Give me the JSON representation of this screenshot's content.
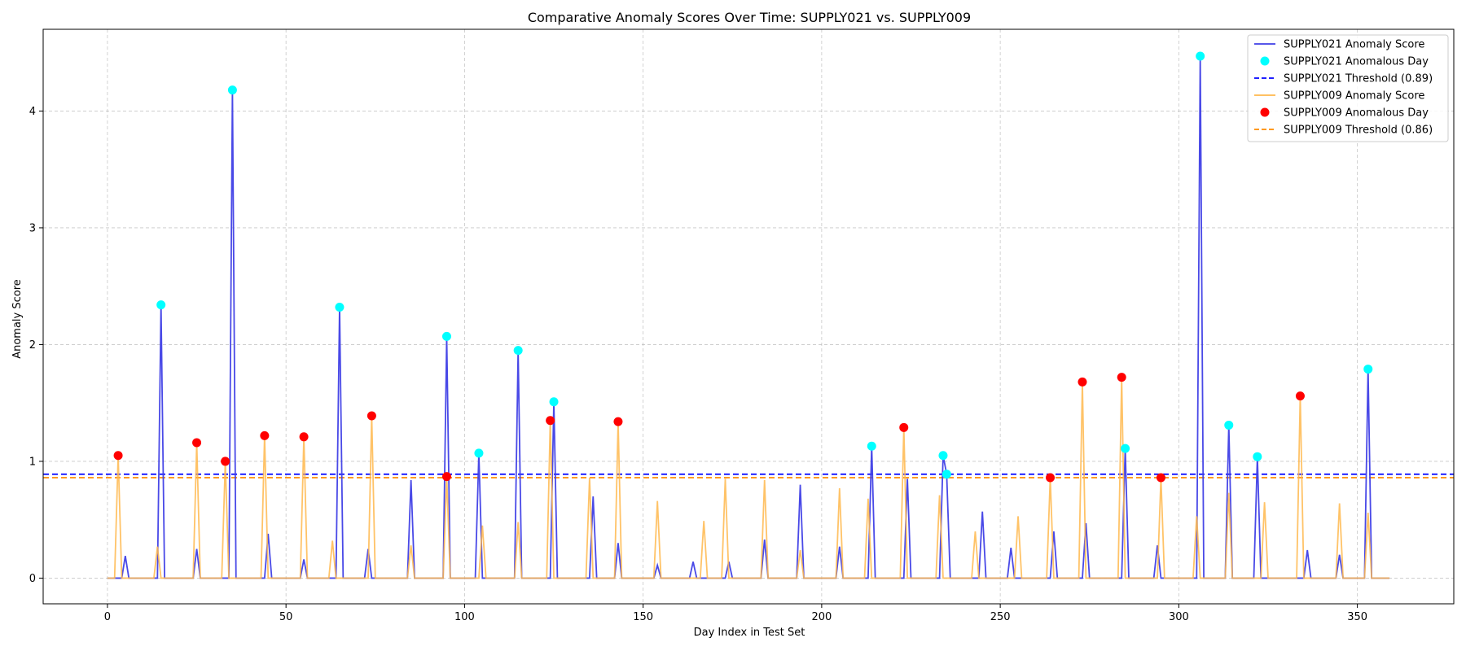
{
  "chart_data": {
    "type": "line",
    "title": "Comparative Anomaly Scores Over Time: SUPPLY021 vs. SUPPLY009",
    "xlabel": "Day Index in Test Set",
    "ylabel": "Anomaly Score",
    "xlim": [
      -18,
      377
    ],
    "ylim": [
      -0.22,
      4.7
    ],
    "xticks": [
      "0",
      "50",
      "100",
      "150",
      "200",
      "250",
      "300",
      "350"
    ],
    "yticks": [
      "0",
      "1",
      "2",
      "3",
      "4"
    ],
    "grid": true,
    "legend_position": "top-right",
    "n_days": 360,
    "colors": {
      "supply021_line": "#3f3fe6",
      "supply021_marker": "#00ffff",
      "supply021_threshold": "#0000ff",
      "supply009_line": "#ffb84d",
      "supply009_marker": "#ff0000",
      "supply009_threshold": "#ff8c00"
    },
    "series": [
      {
        "name": "SUPPLY021 Anomaly Score",
        "kind": "line",
        "spikes": [
          [
            5,
            0.19
          ],
          [
            15,
            2.34
          ],
          [
            25,
            0.25
          ],
          [
            35,
            4.18
          ],
          [
            45,
            0.38
          ],
          [
            55,
            0.16
          ],
          [
            65,
            2.32
          ],
          [
            73,
            0.25
          ],
          [
            85,
            0.84
          ],
          [
            95,
            2.07
          ],
          [
            104,
            1.07
          ],
          [
            115,
            1.95
          ],
          [
            125,
            1.51
          ],
          [
            136,
            0.7
          ],
          [
            143,
            0.3
          ],
          [
            154,
            0.11
          ],
          [
            164,
            0.14
          ],
          [
            174,
            0.14
          ],
          [
            184,
            0.33
          ],
          [
            194,
            0.8
          ],
          [
            205,
            0.27
          ],
          [
            214,
            1.13
          ],
          [
            224,
            0.85
          ],
          [
            234,
            1.05
          ],
          [
            235,
            0.89
          ],
          [
            245,
            0.57
          ],
          [
            253,
            0.26
          ],
          [
            265,
            0.4
          ],
          [
            274,
            0.47
          ],
          [
            285,
            1.11
          ],
          [
            294,
            0.28
          ],
          [
            306,
            4.47
          ],
          [
            314,
            1.31
          ],
          [
            322,
            1.04
          ],
          [
            336,
            0.24
          ],
          [
            345,
            0.2
          ],
          [
            353,
            1.79
          ]
        ]
      },
      {
        "name": "SUPPLY021 Anomalous Day",
        "kind": "marker",
        "points": [
          [
            15,
            2.34
          ],
          [
            35,
            4.18
          ],
          [
            65,
            2.32
          ],
          [
            95,
            2.07
          ],
          [
            104,
            1.07
          ],
          [
            115,
            1.95
          ],
          [
            125,
            1.51
          ],
          [
            214,
            1.13
          ],
          [
            234,
            1.05
          ],
          [
            235,
            0.89
          ],
          [
            285,
            1.11
          ],
          [
            306,
            4.47
          ],
          [
            314,
            1.31
          ],
          [
            322,
            1.04
          ],
          [
            353,
            1.79
          ]
        ]
      },
      {
        "name": "SUPPLY021 Threshold (0.89)",
        "kind": "threshold",
        "value": 0.89
      },
      {
        "name": "SUPPLY009 Anomaly Score",
        "kind": "line",
        "spikes": [
          [
            3,
            1.05
          ],
          [
            14,
            0.27
          ],
          [
            25,
            1.16
          ],
          [
            33,
            1.0
          ],
          [
            44,
            1.22
          ],
          [
            55,
            1.21
          ],
          [
            63,
            0.32
          ],
          [
            74,
            1.39
          ],
          [
            85,
            0.28
          ],
          [
            95,
            0.87
          ],
          [
            105,
            0.45
          ],
          [
            115,
            0.48
          ],
          [
            124,
            1.35
          ],
          [
            135,
            0.86
          ],
          [
            143,
            1.34
          ],
          [
            154,
            0.66
          ],
          [
            167,
            0.49
          ],
          [
            173,
            0.85
          ],
          [
            184,
            0.84
          ],
          [
            194,
            0.24
          ],
          [
            205,
            0.77
          ],
          [
            213,
            0.68
          ],
          [
            223,
            1.29
          ],
          [
            233,
            0.71
          ],
          [
            243,
            0.4
          ],
          [
            255,
            0.53
          ],
          [
            264,
            0.86
          ],
          [
            273,
            1.68
          ],
          [
            284,
            1.72
          ],
          [
            295,
            0.86
          ],
          [
            305,
            0.53
          ],
          [
            314,
            0.73
          ],
          [
            324,
            0.65
          ],
          [
            334,
            1.56
          ],
          [
            345,
            0.64
          ],
          [
            353,
            0.56
          ]
        ]
      },
      {
        "name": "SUPPLY009 Anomalous Day",
        "kind": "marker",
        "points": [
          [
            3,
            1.05
          ],
          [
            25,
            1.16
          ],
          [
            33,
            1.0
          ],
          [
            44,
            1.22
          ],
          [
            55,
            1.21
          ],
          [
            74,
            1.39
          ],
          [
            95,
            0.87
          ],
          [
            124,
            1.35
          ],
          [
            143,
            1.34
          ],
          [
            223,
            1.29
          ],
          [
            264,
            0.86
          ],
          [
            273,
            1.68
          ],
          [
            284,
            1.72
          ],
          [
            295,
            0.86
          ],
          [
            334,
            1.56
          ]
        ]
      },
      {
        "name": "SUPPLY009 Threshold (0.86)",
        "kind": "threshold",
        "value": 0.86
      }
    ]
  }
}
